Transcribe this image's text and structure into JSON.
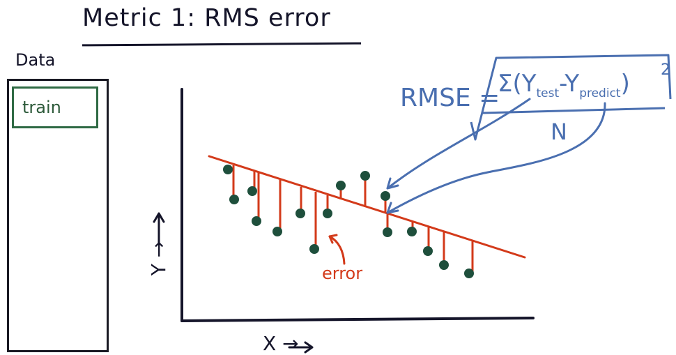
{
  "title": "Metric 1: RMS error",
  "data_panel": {
    "label": "Data",
    "train_label": "train"
  },
  "axes": {
    "x_label": "X →",
    "y_label": "Y →"
  },
  "annotations": {
    "error_label": "error",
    "rmse_label": "RMSE =",
    "formula_sum_open": "Σ(Y",
    "formula_test": "test",
    "formula_minus": "-Y",
    "formula_predict": "predict",
    "formula_close": ")",
    "formula_power": "2",
    "formula_denominator": "N"
  },
  "colors": {
    "ink": "#15152a",
    "train_green": "#2f6a44",
    "point_green": "#1e4f3c",
    "error_red": "#d33a1a",
    "formula_blue": "#4a6fb0"
  },
  "icons": [
    "right-arrow-icon",
    "up-arrow-icon",
    "curved-arrow-icon"
  ]
}
